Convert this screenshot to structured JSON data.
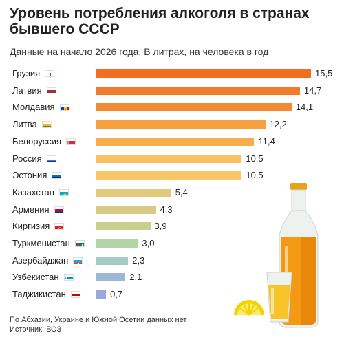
{
  "header": {
    "title": "Уровень потребления алкоголя в странах бывшего СССР",
    "subtitle": "Данные на начало 2026 года. В литрах, на человека в год"
  },
  "footer": {
    "note": "По Абхазии, Украине и Южной Осетии данных нет",
    "source": "Источник: ВОЗ"
  },
  "chart_data": {
    "type": "bar",
    "orientation": "horizontal",
    "title": "Уровень потребления алкоголя в странах бывшего СССР",
    "xlabel": "",
    "ylabel": "",
    "xlim": [
      0,
      15.5
    ],
    "grid": false,
    "categories": [
      "Грузия",
      "Латвия",
      "Молдавия",
      "Литва",
      "Белоруссия",
      "Россия",
      "Эстония",
      "Казахстан",
      "Армения",
      "Киргизия",
      "Туркменистан",
      "Азербайджан",
      "Узбекистан",
      "Таджикистан"
    ],
    "values": [
      15.5,
      14.7,
      14.1,
      12.2,
      11.4,
      10.5,
      10.5,
      5.4,
      4.3,
      3.9,
      3.0,
      2.3,
      2.1,
      0.7
    ],
    "value_labels": [
      "15,5",
      "14,7",
      "14,1",
      "12,2",
      "11,4",
      "10,5",
      "10,5",
      "5,4",
      "4,3",
      "3,9",
      "3,0",
      "2,3",
      "2,1",
      "0,7"
    ],
    "bar_colors": [
      "#f36c21",
      "#f47b2c",
      "#f58a35",
      "#f7a040",
      "#f8ae4e",
      "#f9c163",
      "#f9c767",
      "#e2c97c",
      "#d8ca84",
      "#c9d08f",
      "#b2d4a7",
      "#a4cbc4",
      "#9db8d6",
      "#9aa8dc"
    ],
    "flag_icons": [
      "georgia-flag",
      "latvia-flag",
      "moldova-flag",
      "lithuania-flag",
      "belarus-flag",
      "russia-flag",
      "estonia-flag",
      "kazakhstan-flag",
      "armenia-flag",
      "kyrgyzstan-flag",
      "turkmenistan-flag",
      "azerbaijan-flag",
      "uzbekistan-flag",
      "tajikistan-flag"
    ]
  },
  "illustration": {
    "icons": [
      "bottle-icon",
      "shot-glass-icon",
      "lemon-slice-icon"
    ]
  }
}
